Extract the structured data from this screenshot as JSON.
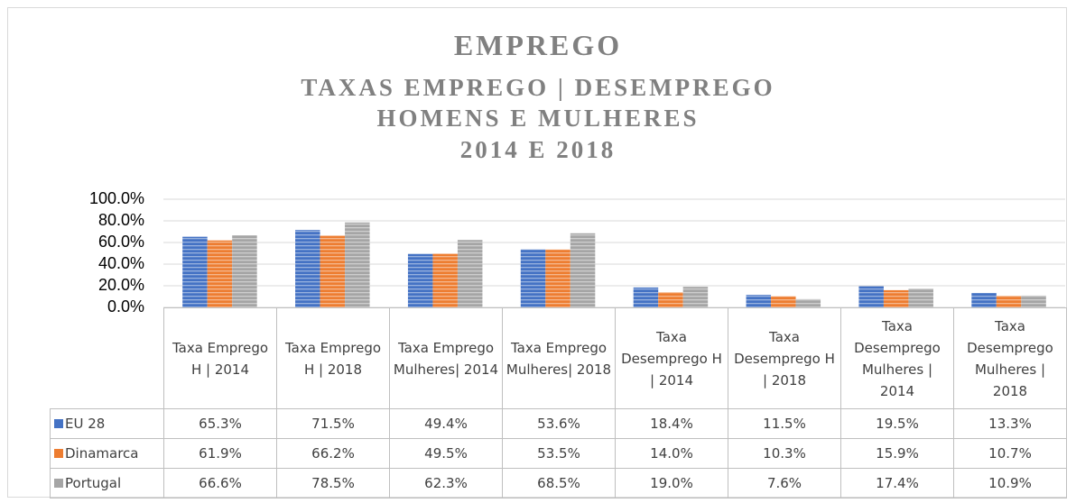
{
  "chart_data": {
    "type": "bar",
    "title": "EMPREGO",
    "subtitle": [
      "TAXAS EMPREGO | DESEMPREGO",
      "HOMENS E MULHERES",
      "2014 E 2018"
    ],
    "categories": [
      "Taxa Emprego H | 2014",
      "Taxa Emprego H | 2018",
      "Taxa Emprego Mulheres| 2014",
      "Taxa Emprego Mulheres| 2018",
      "Taxa Desemprego H | 2014",
      "Taxa Desemprego H | 2018",
      "Taxa Desemprego Mulheres | 2014",
      "Taxa Desemprego Mulheres | 2018"
    ],
    "series": [
      {
        "name": "EU 28",
        "color": "#4472c4",
        "values": [
          65.3,
          71.5,
          49.4,
          53.6,
          18.4,
          11.5,
          19.5,
          13.3
        ],
        "value_labels": [
          "65.3%",
          "71.5%",
          "49.4%",
          "53.6%",
          "18.4%",
          "11.5%",
          "19.5%",
          "13.3%"
        ]
      },
      {
        "name": "Dinamarca",
        "color": "#ed7d31",
        "values": [
          61.9,
          66.2,
          49.5,
          53.5,
          14.0,
          10.3,
          15.9,
          10.7
        ],
        "value_labels": [
          "61.9%",
          "66.2%",
          "49.5%",
          "53.5%",
          "14.0%",
          "10.3%",
          "15.9%",
          "10.7%"
        ]
      },
      {
        "name": "Portugal",
        "color": "#a5a5a5",
        "values": [
          66.6,
          78.5,
          62.3,
          68.5,
          19.0,
          7.6,
          17.4,
          10.9
        ],
        "value_labels": [
          "66.6%",
          "78.5%",
          "62.3%",
          "68.5%",
          "19.0%",
          "7.6%",
          "17.4%",
          "10.9%"
        ]
      }
    ],
    "ylim": [
      0,
      100
    ],
    "yticks": [
      {
        "value": 0,
        "label": "0.0%"
      },
      {
        "value": 20,
        "label": "20.0%"
      },
      {
        "value": 40,
        "label": "40.0%"
      },
      {
        "value": 60,
        "label": "60.0%"
      },
      {
        "value": 80,
        "label": "80.0%"
      },
      {
        "value": 100,
        "label": "100.0%"
      }
    ],
    "grid": true
  }
}
